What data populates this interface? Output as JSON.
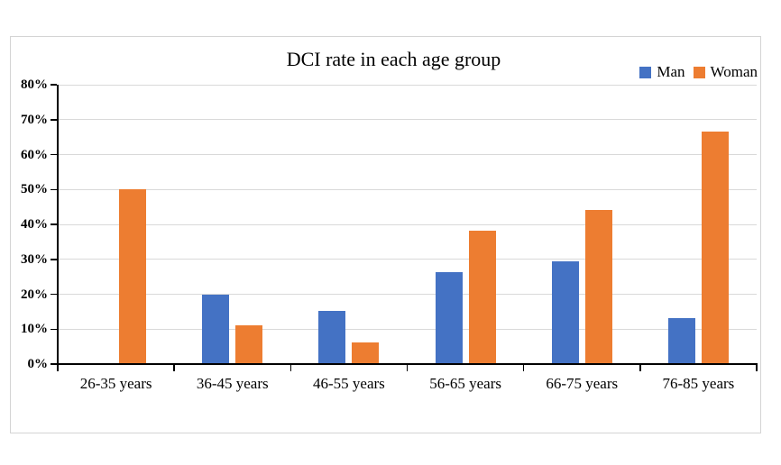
{
  "figure": {
    "background": "#ffffff",
    "panel_border_color": "#d4d4d4",
    "gridline_color": "#d9d9d9",
    "axis_color": "#000000",
    "text_color": "#000000"
  },
  "chart_data": {
    "type": "bar",
    "title": "DCI rate in each age group",
    "xlabel": "",
    "ylabel": "",
    "categories": [
      "26-35 years",
      "36-45 years",
      "46-55 years",
      "56-65 years",
      "66-75 years",
      "76-85 years"
    ],
    "series": [
      {
        "name": "Man",
        "color": "#4472C4",
        "values": [
          0,
          20,
          15.2,
          26.3,
          29.4,
          13.1
        ]
      },
      {
        "name": "Woman",
        "color": "#ED7D31",
        "values": [
          50,
          11.1,
          6.3,
          38.2,
          44.1,
          66.7
        ]
      }
    ],
    "y_axis": {
      "min": 0,
      "max": 80,
      "step": 10,
      "unit": "%",
      "tick_labels": [
        "0%",
        "10%",
        "20%",
        "30%",
        "40%",
        "50%",
        "60%",
        "70%",
        "80%"
      ]
    },
    "grid": true,
    "legend_position": "top-right"
  }
}
